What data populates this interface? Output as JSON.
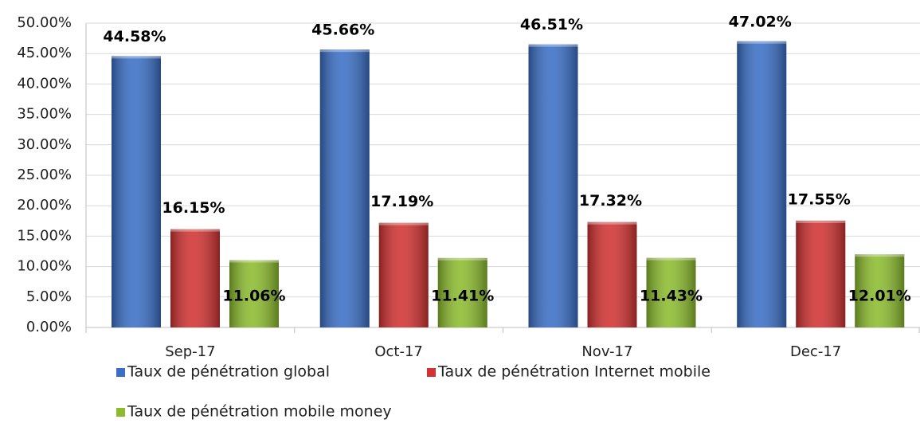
{
  "chart_data": {
    "type": "bar",
    "categories": [
      "Sep-17",
      "Oct-17",
      "Nov-17",
      "Dec-17"
    ],
    "series": [
      {
        "name": "Taux de pénétration global",
        "color": "#3a6fc6",
        "values": [
          44.58,
          45.66,
          46.51,
          47.02
        ],
        "value_labels": [
          "44.58%",
          "45.66%",
          "46.51%",
          "47.02%"
        ]
      },
      {
        "name": "Taux de pénétration Internet mobile",
        "color": "#d23232",
        "values": [
          16.15,
          17.19,
          17.32,
          17.55
        ],
        "value_labels": [
          "16.15%",
          "17.19%",
          "17.32%",
          "17.55%"
        ]
      },
      {
        "name": "Taux de pénétration mobile money",
        "color": "#8cbc2e",
        "values": [
          11.06,
          11.41,
          11.43,
          12.01
        ],
        "value_labels": [
          "11.06%",
          "11.41%",
          "11.43%",
          "12.01%"
        ]
      }
    ],
    "ylim": [
      0,
      50
    ],
    "yticks": [
      {
        "value": 0,
        "label": "0.00%"
      },
      {
        "value": 5,
        "label": "5.00%"
      },
      {
        "value": 10,
        "label": "10.00%"
      },
      {
        "value": 15,
        "label": "15.00%"
      },
      {
        "value": 20,
        "label": "20.00%"
      },
      {
        "value": 25,
        "label": "25.00%"
      },
      {
        "value": 30,
        "label": "30.00%"
      },
      {
        "value": 35,
        "label": "35.00%"
      },
      {
        "value": 40,
        "label": "40.00%"
      },
      {
        "value": 45,
        "label": "45.00%"
      },
      {
        "value": 50,
        "label": "50.00%"
      }
    ],
    "grid": true
  }
}
